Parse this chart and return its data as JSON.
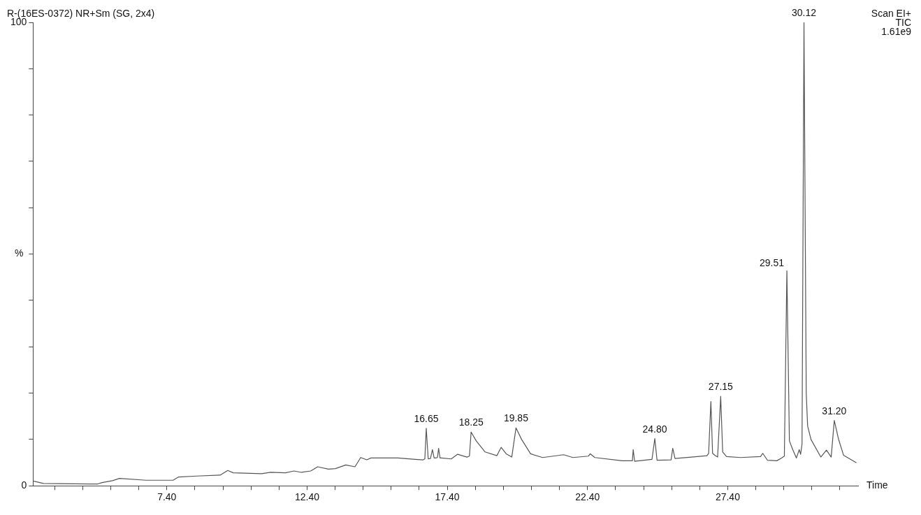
{
  "chart_data": {
    "type": "line",
    "title": "R-(16ES-0372) NR+Sm (SG, 2x4)",
    "xlabel": "Time",
    "ylabel": "%",
    "annotations": [
      "Scan EI+",
      "TIC",
      "1.61e9",
      {
        "text": "16.65",
        "x": 16.65,
        "y": 12.4
      },
      {
        "text": "18.25",
        "x": 18.25,
        "y": 11.6
      },
      {
        "text": "19.85",
        "x": 19.85,
        "y": 12.5
      },
      {
        "text": "24.80",
        "x": 24.8,
        "y": 10.2
      },
      {
        "text": "27.15",
        "x": 27.15,
        "y": 19.3
      },
      {
        "text": "29.51",
        "x": 29.51,
        "y": 46.4
      },
      {
        "text": "30.12",
        "x": 30.12,
        "y": 100
      },
      {
        "text": "31.20",
        "x": 31.2,
        "y": 14.1
      }
    ],
    "xlim": [
      2.63,
      32.05
    ],
    "ylim": [
      0,
      100
    ],
    "xticks": [
      {
        "value": 3.4,
        "label": null
      },
      {
        "value": 4.4,
        "label": null
      },
      {
        "value": 5.4,
        "label": null
      },
      {
        "value": 6.4,
        "label": null
      },
      {
        "value": 7.4,
        "label": "7.40"
      },
      {
        "value": 8.4,
        "label": null
      },
      {
        "value": 9.4,
        "label": null
      },
      {
        "value": 10.4,
        "label": null
      },
      {
        "value": 11.4,
        "label": null
      },
      {
        "value": 12.4,
        "label": "12.40"
      },
      {
        "value": 13.4,
        "label": null
      },
      {
        "value": 14.4,
        "label": null
      },
      {
        "value": 15.4,
        "label": null
      },
      {
        "value": 16.4,
        "label": null
      },
      {
        "value": 17.4,
        "label": "17.40"
      },
      {
        "value": 18.4,
        "label": null
      },
      {
        "value": 19.4,
        "label": null
      },
      {
        "value": 20.4,
        "label": null
      },
      {
        "value": 21.4,
        "label": null
      },
      {
        "value": 22.4,
        "label": "22.40"
      },
      {
        "value": 23.4,
        "label": null
      },
      {
        "value": 24.4,
        "label": null
      },
      {
        "value": 25.4,
        "label": null
      },
      {
        "value": 26.4,
        "label": null
      },
      {
        "value": 27.4,
        "label": "27.40"
      },
      {
        "value": 28.4,
        "label": null
      },
      {
        "value": 29.4,
        "label": null
      },
      {
        "value": 30.4,
        "label": null
      },
      {
        "value": 31.4,
        "label": null
      }
    ],
    "yticks": [
      0,
      {
        "value": 10,
        "label": null
      },
      {
        "value": 20,
        "label": null
      },
      {
        "value": 30,
        "label": null
      },
      {
        "value": 40,
        "label": null
      },
      {
        "value": 50,
        "label": null
      },
      {
        "value": 60,
        "label": null
      },
      {
        "value": 70,
        "label": null
      },
      {
        "value": 80,
        "label": null
      },
      {
        "value": 90,
        "label": null
      },
      100
    ],
    "grid": false,
    "legend": false,
    "marker": "none",
    "line_style": "solid",
    "series": [
      {
        "color": "#555555",
        "x": [
          2.66,
          3.0,
          4.66,
          4.94,
          5.09,
          5.46,
          5.71,
          6.66,
          7.62,
          7.82,
          8.47,
          9.3,
          9.57,
          9.77,
          10.78,
          11.1,
          11.63,
          11.93,
          12.2,
          12.53,
          12.78,
          13.16,
          13.41,
          13.78,
          14.11,
          14.31,
          14.53,
          14.68,
          15.64,
          16.26,
          16.54,
          16.6,
          16.65,
          16.72,
          16.8,
          16.87,
          16.93,
          16.99,
          17.05,
          17.09,
          17.14,
          17.19,
          17.54,
          17.77,
          18.1,
          18.19,
          18.25,
          18.43,
          18.75,
          19.17,
          19.32,
          19.5,
          19.7,
          19.85,
          20.05,
          20.37,
          20.8,
          21.55,
          21.88,
          22.43,
          22.5,
          22.66,
          23.63,
          24.0,
          24.03,
          24.08,
          24.7,
          24.8,
          24.88,
          25.38,
          25.44,
          25.52,
          26.11,
          26.66,
          26.72,
          26.8,
          26.86,
          26.94,
          27.04,
          27.15,
          27.22,
          27.36,
          27.86,
          28.57,
          28.65,
          28.82,
          29.15,
          29.32,
          29.42,
          29.51,
          29.6,
          29.72,
          29.85,
          29.95,
          30.0,
          30.05,
          30.12,
          30.2,
          30.25,
          30.37,
          30.72,
          30.92,
          31.09,
          31.2,
          31.35,
          31.53,
          31.98
        ],
        "values": [
          1.0,
          0.5,
          0.4,
          0.4,
          0.7,
          1.1,
          1.6,
          1.2,
          1.2,
          1.9,
          2.1,
          2.3,
          3.3,
          2.8,
          2.6,
          2.9,
          2.8,
          3.2,
          2.9,
          3.2,
          4.1,
          3.6,
          3.7,
          4.5,
          4.1,
          6.1,
          5.6,
          6.0,
          6.0,
          5.7,
          5.6,
          5.8,
          12.4,
          5.8,
          5.9,
          7.8,
          6.0,
          6.0,
          6.1,
          8.1,
          6.0,
          6.0,
          5.8,
          6.8,
          6.2,
          6.4,
          11.6,
          9.7,
          7.3,
          6.5,
          8.3,
          6.9,
          6.2,
          12.5,
          10.0,
          6.9,
          6.1,
          6.7,
          6.1,
          6.4,
          6.9,
          6.1,
          5.4,
          5.4,
          7.8,
          5.3,
          5.7,
          10.2,
          5.5,
          5.6,
          8.1,
          5.9,
          6.2,
          6.5,
          7.0,
          18.2,
          7.0,
          6.6,
          6.2,
          19.3,
          7.3,
          6.3,
          6.1,
          6.3,
          7.0,
          5.5,
          5.4,
          6.0,
          6.4,
          46.4,
          9.7,
          7.8,
          6.0,
          7.8,
          6.8,
          9.0,
          100,
          20.0,
          12.9,
          10.0,
          6.2,
          7.7,
          6.2,
          14.1,
          10.1,
          6.6,
          5.0
        ]
      }
    ]
  }
}
